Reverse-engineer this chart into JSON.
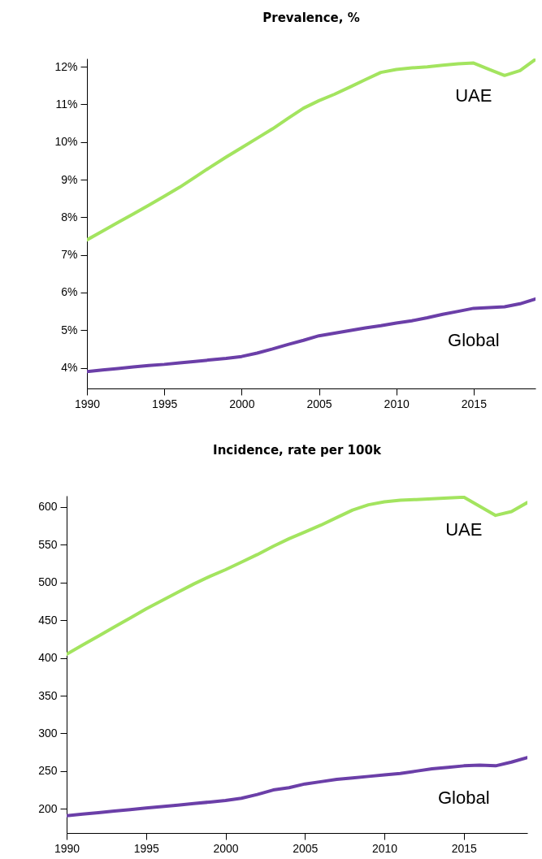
{
  "chart_data": [
    {
      "type": "line",
      "title": "Prevalence, %",
      "x": [
        1990,
        1991,
        1992,
        1993,
        1994,
        1995,
        1996,
        1997,
        1998,
        1999,
        2000,
        2001,
        2002,
        2003,
        2004,
        2005,
        2006,
        2007,
        2008,
        2009,
        2010,
        2011,
        2012,
        2013,
        2014,
        2015,
        2016,
        2017,
        2018,
        2019
      ],
      "series": [
        {
          "name": "UAE",
          "color": "#a3e45f",
          "values": [
            7.4,
            7.63,
            7.86,
            8.09,
            8.32,
            8.56,
            8.8,
            9.07,
            9.34,
            9.6,
            9.85,
            10.1,
            10.35,
            10.63,
            10.9,
            11.1,
            11.27,
            11.46,
            11.66,
            11.85,
            11.93,
            11.97,
            12.0,
            12.04,
            12.08,
            12.1,
            11.93,
            11.77,
            11.9,
            12.2
          ]
        },
        {
          "name": "Global",
          "color": "#6b3fa8",
          "values": [
            3.9,
            3.94,
            3.98,
            4.02,
            4.06,
            4.09,
            4.13,
            4.17,
            4.21,
            4.25,
            4.3,
            4.39,
            4.5,
            4.62,
            4.73,
            4.85,
            4.92,
            4.99,
            5.06,
            5.12,
            5.19,
            5.25,
            5.33,
            5.42,
            5.5,
            5.58,
            5.6,
            5.62,
            5.7,
            5.83
          ]
        }
      ],
      "xlim": [
        1990,
        2019
      ],
      "xticks": [
        1990,
        1995,
        2000,
        2005,
        2010,
        2015
      ],
      "ylim": [
        3.45,
        12.22
      ],
      "yticks": [
        {
          "value": 4,
          "label": "4%"
        },
        {
          "value": 5,
          "label": "5%"
        },
        {
          "value": 6,
          "label": "6%"
        },
        {
          "value": 7,
          "label": "7%"
        },
        {
          "value": 8,
          "label": "8%"
        },
        {
          "value": 9,
          "label": "9%"
        },
        {
          "value": 10,
          "label": "10%"
        },
        {
          "value": 11,
          "label": "11%"
        },
        {
          "value": 12,
          "label": "12%"
        }
      ],
      "grid": false
    },
    {
      "type": "line",
      "title": "Incidence, rate per 100k",
      "x": [
        1990,
        1991,
        1992,
        1993,
        1994,
        1995,
        1996,
        1997,
        1998,
        1999,
        2000,
        2001,
        2002,
        2003,
        2004,
        2005,
        2006,
        2007,
        2008,
        2009,
        2010,
        2011,
        2012,
        2013,
        2014,
        2015,
        2016,
        2017,
        2018,
        2019
      ],
      "series": [
        {
          "name": "UAE",
          "color": "#a3e45f",
          "values": [
            405,
            417,
            429,
            441,
            453,
            465,
            476,
            487,
            498,
            508,
            517,
            527,
            537,
            548,
            558,
            567,
            576,
            586,
            596,
            603,
            607,
            609,
            610,
            611,
            612,
            613,
            601,
            589,
            594,
            606
          ]
        },
        {
          "name": "Global",
          "color": "#6b3fa8",
          "values": [
            191,
            193,
            195,
            197,
            199,
            201,
            203,
            205,
            207,
            209,
            211,
            214,
            219,
            225,
            228,
            233,
            236,
            239,
            241,
            243,
            245,
            247,
            250,
            253,
            255,
            257,
            258,
            257,
            262,
            268
          ]
        }
      ],
      "xlim": [
        1990,
        2019
      ],
      "xticks": [
        1990,
        1995,
        2000,
        2005,
        2010,
        2015
      ],
      "ylim": [
        168,
        615
      ],
      "yticks": [
        200,
        250,
        300,
        350,
        400,
        450,
        500,
        550,
        600
      ],
      "grid": false
    }
  ]
}
